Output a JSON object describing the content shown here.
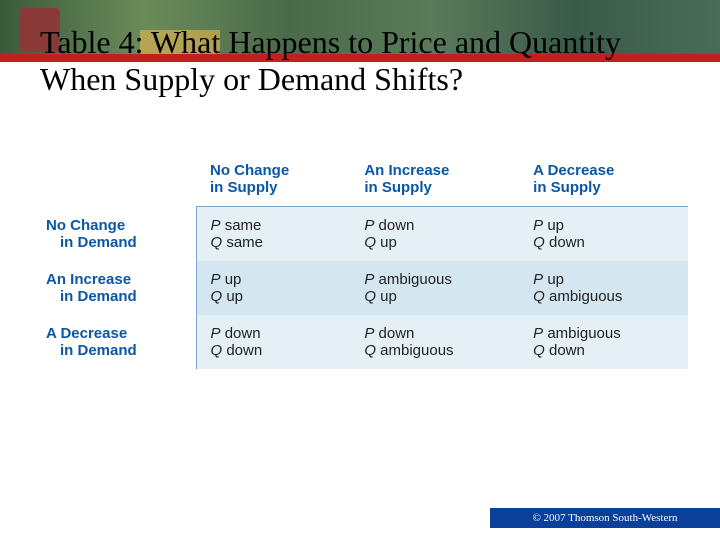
{
  "title": "Table 4: What Happens to Price and Quantity When Supply or Demand Shifts?",
  "colors": {
    "accent_red": "#c21f1f",
    "heading_blue": "#0a57a4",
    "stripe_light": "#e4f0f6",
    "stripe_dark": "#d4e6f0",
    "rule": "#7aa7cf",
    "copyright_bg": "#0a3f9a"
  },
  "table": {
    "type": "table",
    "col_headers": [
      {
        "l1": "No Change",
        "l2": "in Supply"
      },
      {
        "l1": "An Increase",
        "l2": "in Supply"
      },
      {
        "l1": "A Decrease",
        "l2": "in Supply"
      }
    ],
    "row_headers": [
      {
        "l1": "No Change",
        "l2": "in Demand"
      },
      {
        "l1": "An Increase",
        "l2": "in Demand"
      },
      {
        "l1": "A Decrease",
        "l2": "in Demand"
      }
    ],
    "cells": [
      [
        {
          "p": "P same",
          "q": "Q same"
        },
        {
          "p": "P down",
          "q": "Q up"
        },
        {
          "p": "P up",
          "q": "Q down"
        }
      ],
      [
        {
          "p": "P up",
          "q": "Q up"
        },
        {
          "p": "P ambiguous",
          "q": "Q up"
        },
        {
          "p": "P up",
          "q": "Q ambiguous"
        }
      ],
      [
        {
          "p": "P down",
          "q": "Q down"
        },
        {
          "p": "P down",
          "q": "Q ambiguous"
        },
        {
          "p": "P ambiguous",
          "q": "Q down"
        }
      ]
    ]
  },
  "copyright": "© 2007 Thomson South-Western"
}
